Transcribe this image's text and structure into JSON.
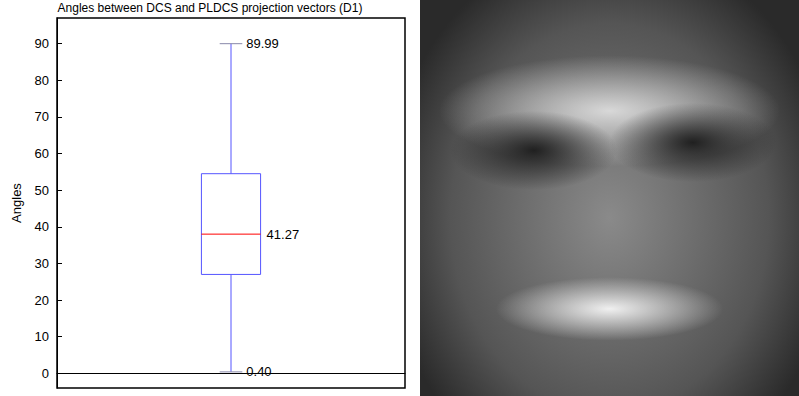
{
  "chart_data": {
    "type": "boxplot",
    "title": "Angles between DCS and PLDCS projection vectors (D1)",
    "ylabel": "Angles",
    "categories": [
      null
    ],
    "boxes": [
      {
        "min": 0.4,
        "q1": 27,
        "median": 38,
        "q3": 54.5,
        "max": 89.99,
        "mean": 41.27
      }
    ],
    "value_labels": {
      "min": "0.40",
      "max": "89.99",
      "mean": "41.27"
    },
    "color": "#5555ff",
    "ylim": [
      -4,
      97
    ],
    "yticks": [
      0,
      10,
      20,
      30,
      40,
      50,
      60,
      70,
      80,
      90
    ],
    "grid": false
  }
}
